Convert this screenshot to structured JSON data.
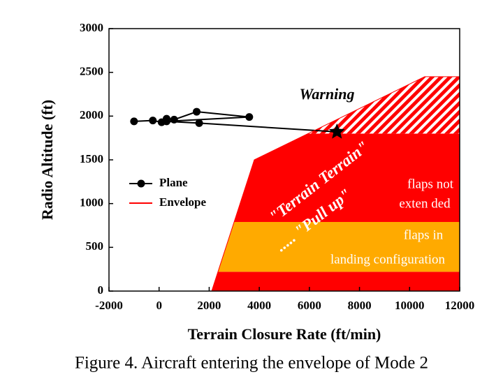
{
  "chart_data": {
    "type": "line",
    "caption": "Figure 4. Aircraft entering the envelope of Mode 2",
    "x_label": "Terrain Closure Rate (ft/min)",
    "y_label": "Radio Altitude (ft)",
    "xlim": [
      -2000,
      12000
    ],
    "ylim": [
      0,
      3000
    ],
    "xticks": [
      -2000,
      0,
      2000,
      4000,
      6000,
      8000,
      10000,
      12000
    ],
    "yticks": [
      0,
      500,
      1000,
      1500,
      2000,
      2500,
      3000
    ],
    "series": [
      {
        "name": "Plane",
        "color": "#000000",
        "x": [
          -1000,
          -250,
          100,
          300,
          600,
          1500,
          3600,
          300,
          1600,
          7100
        ],
        "values": [
          1940,
          1950,
          1930,
          1970,
          1960,
          2050,
          1990,
          1940,
          1920,
          1820
        ]
      },
      {
        "name": "Envelope",
        "color": "#ff0000",
        "x": [
          2100,
          3800,
          10600,
          12000
        ],
        "values": [
          0,
          1500,
          2450,
          2450
        ]
      }
    ],
    "regions": [
      {
        "color": "#ff0000",
        "points": [
          [
            2100,
            0
          ],
          [
            12000,
            0
          ],
          [
            12000,
            220
          ],
          [
            2350,
            220
          ]
        ]
      },
      {
        "color": "#ffaa00",
        "points": [
          [
            2350,
            220
          ],
          [
            12000,
            220
          ],
          [
            12000,
            790
          ],
          [
            3000,
            790
          ]
        ]
      },
      {
        "color": "#ff0000",
        "points": [
          [
            3000,
            790
          ],
          [
            12000,
            790
          ],
          [
            12000,
            1800
          ],
          [
            5950,
            1800
          ],
          [
            3800,
            1500
          ]
        ]
      },
      {
        "color": "#ff0000",
        "pattern": "hatch",
        "points": [
          [
            5950,
            1800
          ],
          [
            12000,
            1800
          ],
          [
            12000,
            2450
          ],
          [
            10600,
            2450
          ]
        ]
      }
    ],
    "annotations": [
      "Warning",
      "\"Terrain Terrain\"",
      "..... \"Pull up\"",
      "flaps not",
      "exten ded",
      "flaps in",
      "landing configuration"
    ]
  }
}
